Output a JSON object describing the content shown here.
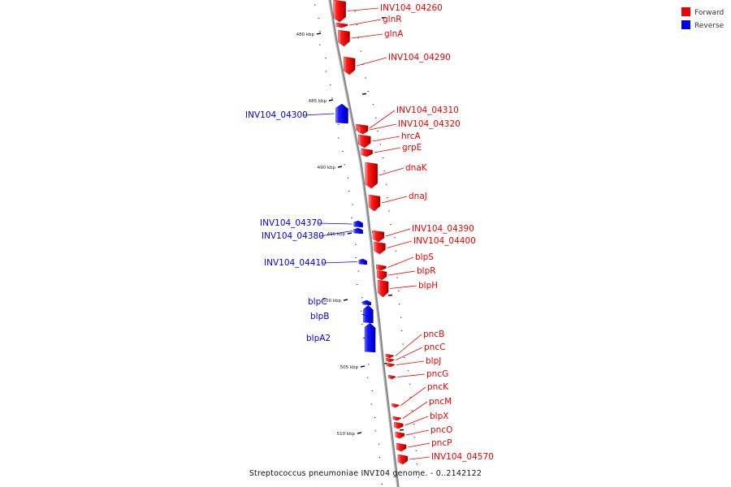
{
  "caption": "Streptococcus pneumoniae INV104 genome. - 0..2142122",
  "colors": {
    "forward": "#ee0000",
    "reverse": "#0000ee",
    "backbone": "#8a8a8a",
    "tick": "#111111"
  },
  "legend": [
    {
      "label": "Forward",
      "color": "#ee0000"
    },
    {
      "label": "Reverse",
      "color": "#0000ee"
    }
  ],
  "axis": {
    "unit": "kbp",
    "tick_labels": [
      "480 kbp",
      "485 kbp",
      "490 kbp",
      "495 kbp",
      "500 kbp",
      "505 kbp",
      "510 kbp"
    ]
  },
  "genes": [
    {
      "name": "INV104_04260",
      "strand": "forward"
    },
    {
      "name": "glnR",
      "strand": "forward"
    },
    {
      "name": "glnA",
      "strand": "forward"
    },
    {
      "name": "INV104_04290",
      "strand": "forward"
    },
    {
      "name": "INV104_04300",
      "strand": "reverse"
    },
    {
      "name": "INV104_04310",
      "strand": "forward"
    },
    {
      "name": "INV104_04320",
      "strand": "forward"
    },
    {
      "name": "hrcA",
      "strand": "forward"
    },
    {
      "name": "grpE",
      "strand": "forward"
    },
    {
      "name": "dnaK",
      "strand": "forward"
    },
    {
      "name": "dnaJ",
      "strand": "forward"
    },
    {
      "name": "INV104_04370",
      "strand": "reverse"
    },
    {
      "name": "INV104_04380",
      "strand": "reverse"
    },
    {
      "name": "INV104_04390",
      "strand": "forward"
    },
    {
      "name": "INV104_04400",
      "strand": "forward"
    },
    {
      "name": "INV104_04410",
      "strand": "reverse"
    },
    {
      "name": "blpS",
      "strand": "forward"
    },
    {
      "name": "blpR",
      "strand": "forward"
    },
    {
      "name": "blpH",
      "strand": "forward"
    },
    {
      "name": "blpC",
      "strand": "reverse"
    },
    {
      "name": "blpB",
      "strand": "reverse"
    },
    {
      "name": "blpA2",
      "strand": "reverse"
    },
    {
      "name": "pncB",
      "strand": "forward"
    },
    {
      "name": "pncC",
      "strand": "forward"
    },
    {
      "name": "blpJ",
      "strand": "forward"
    },
    {
      "name": "pncG",
      "strand": "forward"
    },
    {
      "name": "pncK",
      "strand": "forward"
    },
    {
      "name": "pncM",
      "strand": "forward"
    },
    {
      "name": "blpX",
      "strand": "forward"
    },
    {
      "name": "pncO",
      "strand": "forward"
    },
    {
      "name": "pncP",
      "strand": "forward"
    },
    {
      "name": "INV104_04570",
      "strand": "forward"
    }
  ]
}
